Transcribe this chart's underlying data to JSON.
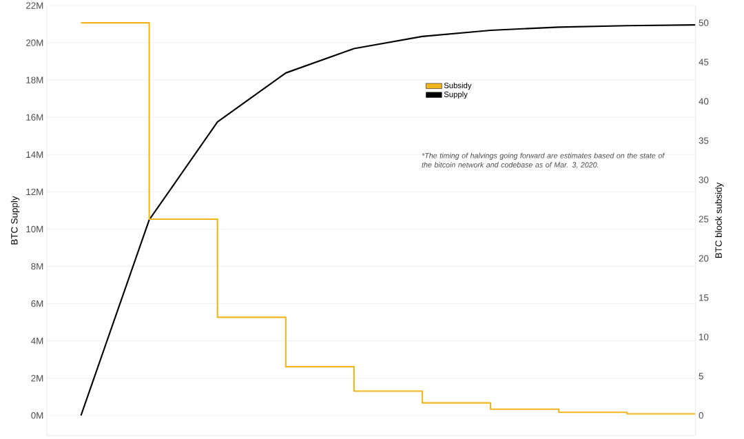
{
  "chart_data": {
    "type": "line",
    "ylabel": "BTC Supply",
    "y2label": "BTC block subsidy",
    "categories": [
      null,
      null,
      null,
      null,
      null,
      null,
      null,
      null,
      null,
      null
    ],
    "series": [
      {
        "name": "Subsidy",
        "type": "step",
        "axis": "y2",
        "color": "#f2b51d",
        "values": [
          50,
          25,
          12.5,
          6.2,
          3.1,
          1.6,
          0.8,
          0.4,
          0.2,
          0.2
        ]
      },
      {
        "name": "Supply",
        "color": "#000000",
        "values": [
          0,
          10.5,
          15.75,
          18.38,
          19.69,
          20.34,
          20.67,
          20.84,
          20.92,
          20.96
        ]
      }
    ],
    "ylim": [
      -1.08,
      22
    ],
    "yticks": [
      {
        "value": 0,
        "label": "0M"
      },
      {
        "value": 2,
        "label": "2M"
      },
      {
        "value": 4,
        "label": "4M"
      },
      {
        "value": 6,
        "label": "6M"
      },
      {
        "value": 8,
        "label": "8M"
      },
      {
        "value": 10,
        "label": "10M"
      },
      {
        "value": 12,
        "label": "12M"
      },
      {
        "value": 14,
        "label": "14M"
      },
      {
        "value": 16,
        "label": "16M"
      },
      {
        "value": 18,
        "label": "18M"
      },
      {
        "value": 20,
        "label": "20M"
      },
      {
        "value": 22,
        "label": "22M"
      }
    ],
    "y2lim": [
      -2.56,
      52.2
    ],
    "y2ticks": [
      0,
      5,
      10,
      15,
      20,
      25,
      30,
      35,
      40,
      45,
      50
    ],
    "grid": "y",
    "legend": "top",
    "tick_labels": [
      "y",
      "y2"
    ],
    "annotations": [
      "*The timing of halvings going forward are estimates based on the state of the bitcoin network and codebase as of Mar. 3, 2020."
    ]
  }
}
